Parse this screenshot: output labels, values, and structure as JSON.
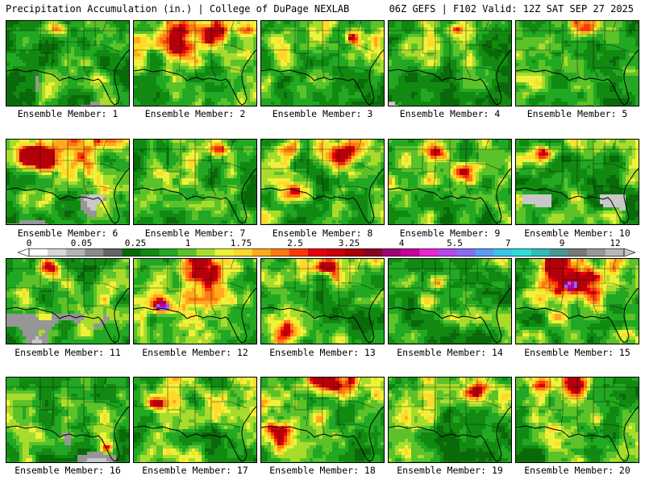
{
  "header": {
    "title_left": "Precipitation Accumulation (in.) | College of DuPage NEXLAB",
    "title_right": "06Z GEFS | F102 Valid: 12Z SAT SEP 27 2025"
  },
  "colorbar": {
    "tick_labels": [
      "0",
      "0.05",
      "0.25",
      "1",
      "1.75",
      "2.5",
      "3.25",
      "4",
      "5.5",
      "7",
      "9",
      "12"
    ],
    "colors": [
      "#ffffff",
      "#d8d8d8",
      "#b4b4b4",
      "#8c8c8c",
      "#646464",
      "#0a6a0a",
      "#128a12",
      "#22a822",
      "#5cc22a",
      "#a8dc2c",
      "#eef23a",
      "#ffda2a",
      "#ffaa1c",
      "#ff7a12",
      "#ff3a0a",
      "#e4000a",
      "#c8000a",
      "#a8000a",
      "#8a0024",
      "#a00074",
      "#c4009c",
      "#e628d2",
      "#b648f0",
      "#8a6cf4",
      "#5c9cf4",
      "#38c8e8",
      "#30dcd8",
      "#30bcb8",
      "#489898",
      "#787878",
      "#989898",
      "#b8b8b8"
    ]
  },
  "panels": [
    {
      "label": "Ensemble Member: 1",
      "seed": 11,
      "wet": 0.35,
      "gray": 0.35,
      "hot": [
        [
          0.42,
          0.08,
          0.1
        ]
      ]
    },
    {
      "label": "Ensemble Member: 2",
      "seed": 22,
      "wet": 0.75,
      "gray": 0.0,
      "hot": [
        [
          0.4,
          0.25,
          0.18
        ],
        [
          0.7,
          0.05,
          0.2
        ]
      ]
    },
    {
      "label": "Ensemble Member: 3",
      "seed": 33,
      "wet": 0.65,
      "gray": 0.0,
      "hot": [
        [
          0.75,
          0.2,
          0.08
        ]
      ]
    },
    {
      "label": "Ensemble Member: 4",
      "seed": 44,
      "wet": 0.45,
      "gray": 0.15,
      "hot": [
        [
          0.55,
          0.1,
          0.06
        ]
      ]
    },
    {
      "label": "Ensemble Member: 5",
      "seed": 55,
      "wet": 0.6,
      "gray": 0.05,
      "hot": [
        [
          0.6,
          0.05,
          0.12
        ]
      ]
    },
    {
      "label": "Ensemble Member: 6",
      "seed": 66,
      "wet": 0.8,
      "gray": 0.45,
      "hot": [
        [
          0.45,
          0.1,
          0.25
        ],
        [
          0.2,
          0.2,
          0.12
        ]
      ]
    },
    {
      "label": "Ensemble Member: 7",
      "seed": 77,
      "wet": 0.5,
      "gray": 0.05,
      "hot": [
        [
          0.68,
          0.12,
          0.08
        ]
      ]
    },
    {
      "label": "Ensemble Member: 8",
      "seed": 88,
      "wet": 0.7,
      "gray": 0.0,
      "hot": [
        [
          0.7,
          0.15,
          0.18
        ],
        [
          0.3,
          0.6,
          0.12
        ],
        [
          0.25,
          0.1,
          0.1
        ]
      ]
    },
    {
      "label": "Ensemble Member: 9",
      "seed": 99,
      "wet": 0.65,
      "gray": 0.0,
      "hot": [
        [
          0.62,
          0.35,
          0.12
        ],
        [
          0.4,
          0.15,
          0.1
        ]
      ]
    },
    {
      "label": "Ensemble Member: 10",
      "seed": 110,
      "wet": 0.55,
      "gray": 0.1,
      "hot": [
        [
          0.25,
          0.15,
          0.1
        ]
      ]
    },
    {
      "label": "Ensemble Member: 11",
      "seed": 121,
      "wet": 0.55,
      "gray": 0.55,
      "hot": [
        [
          0.35,
          0.1,
          0.08
        ]
      ]
    },
    {
      "label": "Ensemble Member: 12",
      "seed": 132,
      "wet": 0.85,
      "gray": 0.0,
      "hot": [
        [
          0.22,
          0.55,
          0.1
        ],
        [
          0.6,
          0.15,
          0.22
        ]
      ],
      "peak": [
        0.24,
        0.55
      ]
    },
    {
      "label": "Ensemble Member: 13",
      "seed": 143,
      "wet": 0.65,
      "gray": 0.0,
      "hot": [
        [
          0.18,
          0.78,
          0.2
        ],
        [
          0.55,
          0.1,
          0.08
        ]
      ]
    },
    {
      "label": "Ensemble Member: 14",
      "seed": 154,
      "wet": 0.5,
      "gray": 0.0,
      "hot": [
        [
          0.4,
          0.25,
          0.1
        ]
      ]
    },
    {
      "label": "Ensemble Member: 15",
      "seed": 165,
      "wet": 0.8,
      "gray": 0.05,
      "hot": [
        [
          0.45,
          0.28,
          0.2
        ],
        [
          0.3,
          0.05,
          0.1
        ]
      ],
      "peak": [
        0.45,
        0.3
      ]
    },
    {
      "label": "Ensemble Member: 16",
      "seed": 176,
      "wet": 0.55,
      "gray": 0.35,
      "hot": [
        [
          0.82,
          0.82,
          0.06
        ]
      ]
    },
    {
      "label": "Ensemble Member: 17",
      "seed": 187,
      "wet": 0.65,
      "gray": 0.0,
      "hot": [
        [
          0.18,
          0.3,
          0.08
        ]
      ]
    },
    {
      "label": "Ensemble Member: 18",
      "seed": 198,
      "wet": 0.8,
      "gray": 0.0,
      "hot": [
        [
          0.15,
          0.62,
          0.16
        ],
        [
          0.6,
          0.05,
          0.18
        ]
      ]
    },
    {
      "label": "Ensemble Member: 19",
      "seed": 209,
      "wet": 0.5,
      "gray": 0.05,
      "hot": [
        [
          0.7,
          0.15,
          0.08
        ]
      ]
    },
    {
      "label": "Ensemble Member: 20",
      "seed": 220,
      "wet": 0.75,
      "gray": 0.0,
      "hot": [
        [
          0.2,
          0.05,
          0.1
        ],
        [
          0.5,
          0.08,
          0.12
        ]
      ]
    }
  ]
}
